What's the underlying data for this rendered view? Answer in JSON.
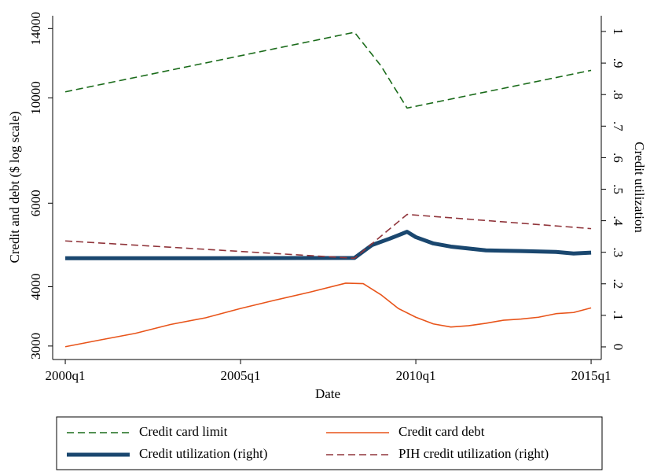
{
  "chart_data": {
    "type": "line",
    "xlabel": "Date",
    "ylabel": "Credit and debt ($ log scale)",
    "y2label": "Credit utilization",
    "ylog": true,
    "xlim": [
      1999.64,
      2015.29
    ],
    "xticks": [
      {
        "value": 2000,
        "label": "2000q1"
      },
      {
        "value": 2005,
        "label": "2005q1"
      },
      {
        "value": 2010,
        "label": "2010q1"
      },
      {
        "value": 2015,
        "label": "2015q1"
      }
    ],
    "ylim": [
      2810,
      14900
    ],
    "yticks": [
      3000,
      4000,
      6000,
      10000,
      14000
    ],
    "y2lim": [
      -0.04,
      1.05
    ],
    "y2ticks": [
      0,
      {
        "value": 0.1,
        "label": ".1"
      },
      {
        "value": 0.2,
        "label": ".2"
      },
      {
        "value": 0.3,
        "label": ".3"
      },
      {
        "value": 0.4,
        "label": ".4"
      },
      {
        "value": 0.5,
        "label": ".5"
      },
      {
        "value": 0.6,
        "label": ".6"
      },
      {
        "value": 0.7,
        "label": ".7"
      },
      {
        "value": 0.8,
        "label": ".8"
      },
      {
        "value": 0.9,
        "label": ".9"
      },
      1
    ],
    "series": [
      {
        "name": "Credit card limit",
        "color": "#1a6b1a",
        "dash": "9,5",
        "width": 1.6,
        "x": [
          2000,
          2008.25,
          2009.0,
          2009.75,
          2015
        ],
        "values": [
          10300,
          13750,
          11700,
          9520,
          11430
        ]
      },
      {
        "name": "Credit card debt",
        "color": "#e8541a",
        "dash": "",
        "width": 1.6,
        "x": [
          2000,
          2001,
          2002,
          2003,
          2004,
          2005,
          2006,
          2007,
          2008,
          2008.5,
          2009,
          2009.5,
          2010,
          2010.5,
          2011,
          2011.5,
          2012,
          2012.5,
          2013,
          2013.5,
          2014,
          2014.5,
          2015
        ],
        "values": [
          2990,
          3090,
          3190,
          3330,
          3440,
          3600,
          3750,
          3900,
          4070,
          4060,
          3850,
          3600,
          3450,
          3340,
          3290,
          3310,
          3350,
          3400,
          3420,
          3450,
          3510,
          3530,
          3610
        ]
      },
      {
        "name": "Credit utilization (right)",
        "color": "#1a476f",
        "dash": "",
        "width": 5,
        "axis": "y2",
        "x": [
          2000,
          2004,
          2008.25,
          2008.75,
          2009.25,
          2009.75,
          2010,
          2010.5,
          2011,
          2012,
          2013,
          2014,
          2014.5,
          2015
        ],
        "values": [
          0.281,
          0.281,
          0.282,
          0.323,
          0.343,
          0.365,
          0.348,
          0.328,
          0.318,
          0.306,
          0.304,
          0.301,
          0.296,
          0.299
        ]
      },
      {
        "name": "PIH credit utilization (right)",
        "color": "#90353b",
        "dash": "9,5",
        "width": 1.6,
        "axis": "y2",
        "x": [
          2000,
          2008.25,
          2009.75,
          2015
        ],
        "values": [
          0.336,
          0.281,
          0.42,
          0.375
        ]
      }
    ]
  }
}
